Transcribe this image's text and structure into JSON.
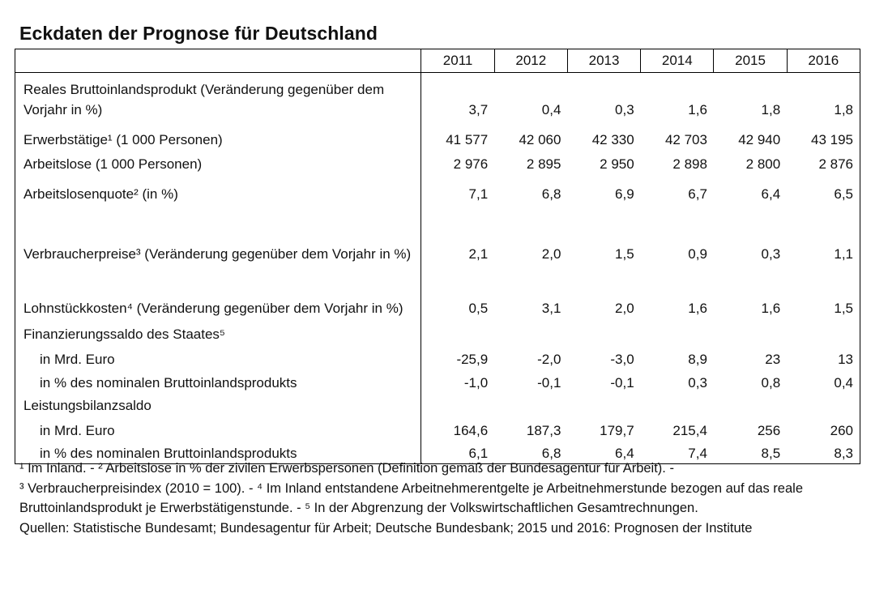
{
  "title": "Eckdaten der Prognose für Deutschland",
  "years": [
    "2011",
    "2012",
    "2013",
    "2014",
    "2015",
    "2016"
  ],
  "rows": [
    {
      "label": "Reales Bruttoinlandsprodukt (Veränderung gegenüber dem Vorjahr in %)",
      "values": [
        "3,7",
        "0,4",
        "0,3",
        "1,6",
        "1,8",
        "1,8"
      ]
    },
    {
      "label": "Erwerbstätige¹ (1 000 Personen)",
      "values": [
        "41 577",
        "42 060",
        "42 330",
        "42 703",
        "42 940",
        "43 195"
      ]
    },
    {
      "label": "Arbeitslose (1 000 Personen)",
      "values": [
        "2 976",
        "2 895",
        "2 950",
        "2 898",
        "2 800",
        "2 876"
      ]
    },
    {
      "label": "Arbeitslosenquote² (in %)",
      "values": [
        "7,1",
        "6,8",
        "6,9",
        "6,7",
        "6,4",
        "6,5"
      ]
    },
    {
      "label": "Verbraucherpreise³ (Veränderung gegenüber dem Vorjahr in %)",
      "values": [
        "2,1",
        "2,0",
        "1,5",
        "0,9",
        "0,3",
        "1,1"
      ]
    },
    {
      "label": "Lohnstückkosten⁴ (Veränderung gegenüber dem Vorjahr in %)",
      "values": [
        "0,5",
        "3,1",
        "2,0",
        "1,6",
        "1,6",
        "1,5"
      ]
    },
    {
      "label": "Finanzierungssaldo des Staates⁵"
    },
    {
      "label": "in Mrd. Euro",
      "values": [
        "-25,9",
        "-2,0",
        "-3,0",
        "8,9",
        "23",
        "13"
      ]
    },
    {
      "label": "in % des nominalen Bruttoinlandsprodukts",
      "values": [
        "-1,0",
        "-0,1",
        "-0,1",
        "0,3",
        "0,8",
        "0,4"
      ]
    },
    {
      "label": "Leistungsbilanzsaldo"
    },
    {
      "label": "in Mrd. Euro",
      "values": [
        "164,6",
        "187,3",
        "179,7",
        "215,4",
        "256",
        "260"
      ]
    },
    {
      "label": "in % des nominalen Bruttoinlandsprodukts",
      "values": [
        "6,1",
        "6,8",
        "6,4",
        "7,4",
        "8,5",
        "8,3"
      ]
    }
  ],
  "notes": [
    "¹ Im Inland. - ² Arbeitslose in % der zivilen Erwerbspersonen (Definition gemäß der Bundesagentur für Arbeit). -",
    "³ Verbraucherpreisindex (2010 = 100). - ⁴ Im Inland entstandene Arbeitnehmerentgelte je Arbeitnehmerstunde bezogen auf das reale Bruttoinlandsprodukt je Erwerbstätigenstunde. - ⁵ In der Abgrenzung der Volkswirtschaftlichen Gesamtrechnungen.",
    "Quellen: Statistische Bundesamt; Bundesagentur für Arbeit; Deutsche Bundesbank; 2015 und 2016: Prognosen der Institute"
  ]
}
